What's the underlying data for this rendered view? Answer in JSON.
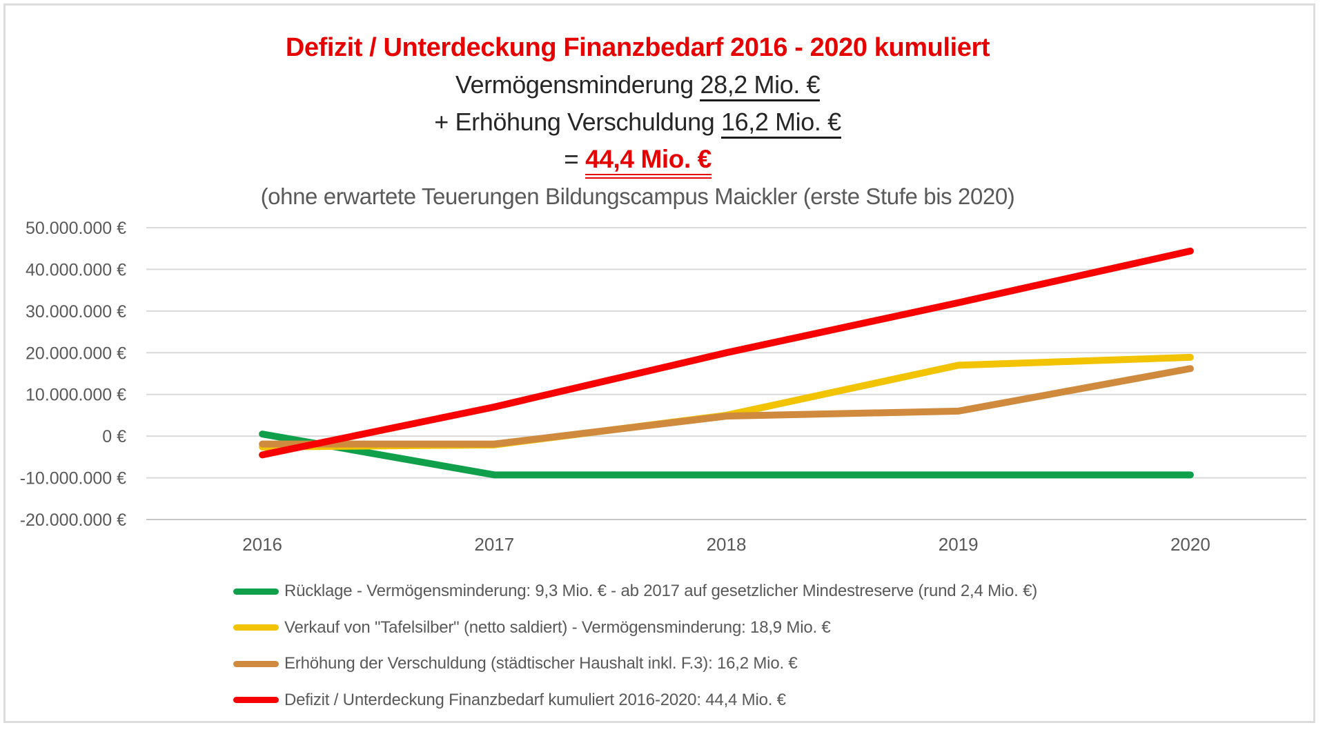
{
  "title": {
    "line1": "Defizit / Unterdeckung Finanzbedarf 2016 - 2020 kumuliert",
    "line2_prefix": "Vermögensminderung ",
    "line2_value": "28,2 Mio. €",
    "line3_prefix": "+ Erhöhung Verschuldung ",
    "line3_value": "16,2 Mio. €",
    "line4_prefix": "= ",
    "line4_value": "44,4 Mio. €",
    "line5": "(ohne erwartete Teuerungen Bildungscampus Maickler (erste Stufe bis 2020)"
  },
  "colors": {
    "title_red": "#e60000",
    "text_dark": "#262626",
    "text_gray": "#595959",
    "gridline": "#d9d9d9",
    "bottom_axis": "#c6c6c6"
  },
  "chart_data": {
    "type": "line",
    "title": "Defizit / Unterdeckung Finanzbedarf 2016 - 2020 kumuliert",
    "categories": [
      "2016",
      "2017",
      "2018",
      "2019",
      "2020"
    ],
    "unit": "EUR, values in Mio.",
    "grid": true,
    "legend_position": "bottom-left",
    "y_axis": {
      "min": -20000000,
      "max": 50000000,
      "tick_step": 10000000,
      "tick_labels_top_to_bottom": [
        "50.000.000 €",
        "40.000.000 €",
        "30.000.000 €",
        "20.000.000 €",
        "10.000.000 €",
        "0 €",
        "-10.000.000 €",
        "-20.000.000 €"
      ]
    },
    "series": [
      {
        "name": "Rücklage - Vermögensminderung: 9,3 Mio. € - ab 2017 auf gesetzlicher Mindestreserve (rund 2,4 Mio. €)",
        "color": "#10a04b",
        "values_mio": [
          0.5,
          -9.3,
          -9.3,
          -9.3,
          -9.3
        ]
      },
      {
        "name": "Verkauf von \"Tafelsilber\" (netto saldiert) - Vermögensminderung: 18,9 Mio. €",
        "color": "#f2c300",
        "values_mio": [
          -2.6,
          -2.1,
          5.0,
          17.0,
          18.9
        ]
      },
      {
        "name": "Erhöhung der Verschuldung (städtischer Haushalt inkl. F.3): 16,2 Mio. €",
        "color": "#cf8a3e",
        "values_mio": [
          -1.9,
          -1.9,
          4.8,
          6.0,
          16.2
        ]
      },
      {
        "name": "Defizit / Unterdeckung Finanzbedarf kumuliert 2016-2020: 44,4 Mio. €",
        "color": "#f80000",
        "values_mio": [
          -4.5,
          7.0,
          20.0,
          32.0,
          44.4
        ]
      }
    ]
  }
}
